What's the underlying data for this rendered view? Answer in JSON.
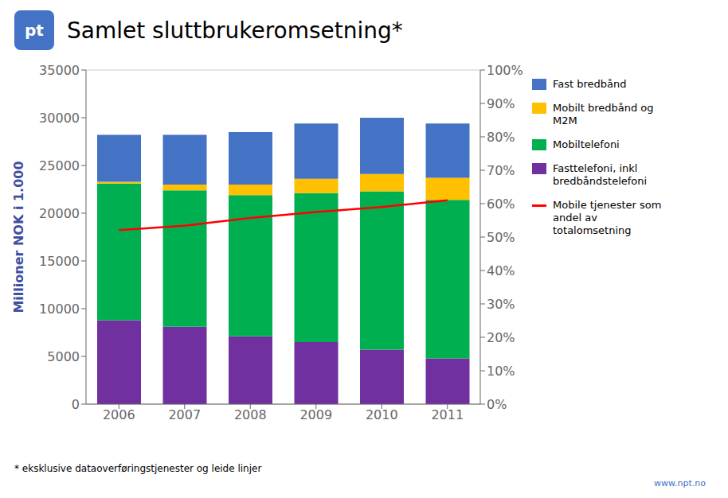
{
  "chart_data": {
    "type": "bar",
    "stacked": true,
    "title": "Samlet sluttbrukeromsetning*",
    "y_label": "Millioner NOK i 1.000",
    "annotations": [
      "pt",
      "* eksklusive dataoverføringstjenester og leide linjer",
      "www.npt.no"
    ],
    "categories": [
      "2006",
      "2007",
      "2008",
      "2009",
      "2010",
      "2011"
    ],
    "series": [
      {
        "name": "Fast bredbånd",
        "type": "bar",
        "color": "#4472C4",
        "values": [
          4900,
          5200,
          5500,
          5800,
          5900,
          5700
        ]
      },
      {
        "name": "Mobilt bredbånd og\nM2M",
        "type": "bar",
        "color": "#FFC000",
        "values": [
          200,
          600,
          1100,
          1500,
          1800,
          2300
        ]
      },
      {
        "name": "Mobiltelefoni",
        "type": "bar",
        "color": "#00B050",
        "values": [
          14300,
          14300,
          14800,
          15600,
          16600,
          16600
        ]
      },
      {
        "name": "Fasttelefoni, inkl\nbredbåndstelefoni",
        "type": "bar",
        "color": "#7030A0",
        "values": [
          8800,
          8100,
          7100,
          6500,
          5700,
          4800
        ]
      },
      {
        "name": "Mobile tjenester som\nandel av\ntotalomsetning",
        "type": "line",
        "axis": "y2",
        "color": "#FF0000",
        "values": [
          0.521,
          0.534,
          0.557,
          0.575,
          0.59,
          0.61
        ]
      }
    ],
    "ylim": [
      0,
      35000
    ],
    "yticks": [
      0,
      5000,
      10000,
      15000,
      20000,
      25000,
      30000,
      35000
    ],
    "y2lim": [
      0,
      1.0
    ],
    "y2ticks": [
      {
        "value": 0,
        "label": "0%"
      },
      {
        "value": 0.1,
        "label": "10%"
      },
      {
        "value": 0.2,
        "label": "20%"
      },
      {
        "value": 0.3,
        "label": "30%"
      },
      {
        "value": 0.4,
        "label": "40%"
      },
      {
        "value": 0.5,
        "label": "50%"
      },
      {
        "value": 0.6,
        "label": "60%"
      },
      {
        "value": 0.7,
        "label": "70%"
      },
      {
        "value": 0.8,
        "label": "80%"
      },
      {
        "value": 0.9,
        "label": "90%"
      },
      {
        "value": 1.0,
        "label": "100%"
      }
    ],
    "grid": true,
    "legend": "right"
  }
}
